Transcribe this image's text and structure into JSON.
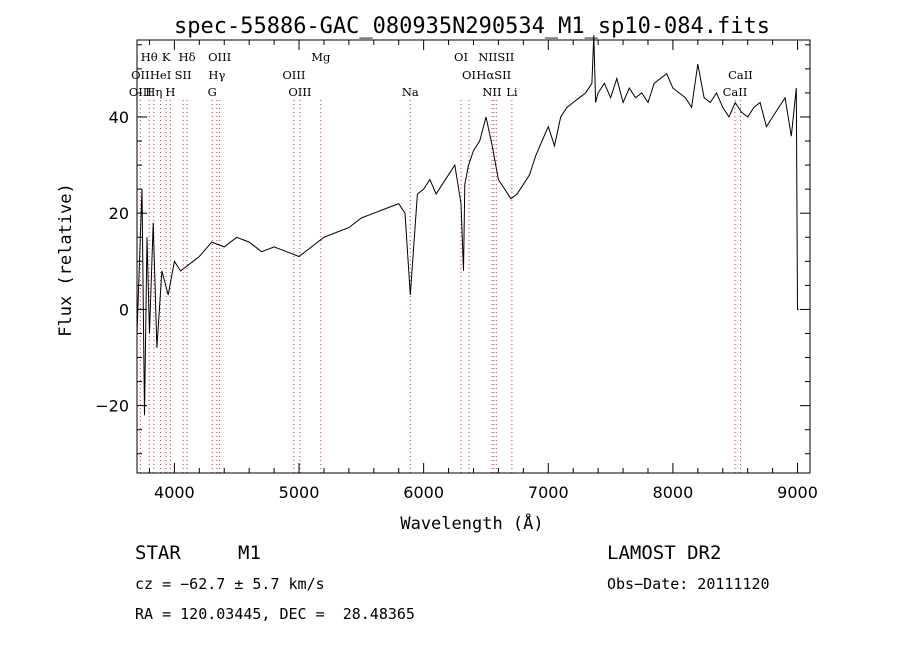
{
  "chart_data": {
    "type": "line",
    "title": "spec-55886-GAC_080935N290534_M1_sp10-084.fits",
    "xlabel": "Wavelength (Å)",
    "ylabel": "Flux (relative)",
    "xlim": [
      3700,
      9100
    ],
    "ylim": [
      -34,
      56
    ],
    "x_ticks": [
      4000,
      5000,
      6000,
      7000,
      8000,
      9000
    ],
    "x_tick_labels": [
      "4000",
      "5000",
      "6000",
      "7000",
      "8000",
      "9000"
    ],
    "y_ticks": [
      -20,
      0,
      20,
      40
    ],
    "y_tick_labels": [
      "−20",
      "0",
      "20",
      "40"
    ],
    "grid": false,
    "series": [
      {
        "x": [
          3700,
          3740,
          3760,
          3780,
          3800,
          3830,
          3860,
          3900,
          3950,
          4000,
          4050,
          4100,
          4150,
          4200,
          4300,
          4400,
          4500,
          4600,
          4700,
          4800,
          4900,
          5000,
          5100,
          5200,
          5300,
          5400,
          5500,
          5600,
          5700,
          5800,
          5850,
          5893,
          5950,
          6000,
          6050,
          6100,
          6150,
          6200,
          6250,
          6300,
          6320,
          6330,
          6360,
          6400,
          6450,
          6500,
          6550,
          6600,
          6650,
          6700,
          6750,
          6800,
          6850,
          6900,
          6950,
          7000,
          7050,
          7100,
          7150,
          7200,
          7250,
          7300,
          7350,
          7365,
          7380,
          7400,
          7450,
          7500,
          7550,
          7600,
          7650,
          7700,
          7750,
          7800,
          7850,
          7900,
          7950,
          8000,
          8050,
          8100,
          8150,
          8200,
          8250,
          8300,
          8350,
          8400,
          8450,
          8500,
          8550,
          8600,
          8650,
          8700,
          8750,
          8800,
          8850,
          8900,
          8950,
          8990,
          9000,
          9010
        ],
        "y": [
          -5,
          25,
          -22,
          15,
          -5,
          18,
          -8,
          8,
          3,
          10,
          8,
          9,
          10,
          11,
          14,
          13,
          15,
          14,
          12,
          13,
          12,
          11,
          13,
          15,
          16,
          17,
          19,
          20,
          21,
          22,
          20,
          3,
          24,
          25,
          27,
          24,
          26,
          28,
          30,
          22,
          8,
          26,
          30,
          33,
          35,
          40,
          34,
          27,
          25,
          23,
          24,
          26,
          28,
          32,
          35,
          38,
          34,
          40,
          42,
          43,
          44,
          45,
          47,
          57,
          43,
          45,
          47,
          44,
          48,
          43,
          46,
          44,
          45,
          43,
          47,
          48,
          49,
          46,
          45,
          44,
          42,
          51,
          44,
          43,
          45,
          42,
          40,
          43,
          41,
          40,
          42,
          43,
          38,
          40,
          42,
          44,
          36,
          46,
          0,
          0
        ]
      }
    ],
    "spectral_lines": [
      {
        "label": "Hθ",
        "wave": 3798,
        "row": 0,
        "color": "#000000"
      },
      {
        "label": "K",
        "wave": 3934,
        "row": 0,
        "color": "#000000"
      },
      {
        "label": "Hδ",
        "wave": 4102,
        "row": 0,
        "color": "#000000"
      },
      {
        "label": "OIII",
        "wave": 4363,
        "row": 0,
        "color": "#000000"
      },
      {
        "label": "Mg",
        "wave": 5175,
        "row": 0,
        "color": "#000000"
      },
      {
        "label": "OI",
        "wave": 6300,
        "row": 0,
        "color": "#000000"
      },
      {
        "label": "NIISII",
        "wave": 6583,
        "row": 0,
        "color": "#000000"
      },
      {
        "label": "OII",
        "wave": 3727,
        "row": 1,
        "color": "#000000"
      },
      {
        "label": "HeI",
        "wave": 3889,
        "row": 1,
        "color": "#000000"
      },
      {
        "label": "SII",
        "wave": 4070,
        "row": 1,
        "color": "#000000"
      },
      {
        "label": "Hγ",
        "wave": 4341,
        "row": 1,
        "color": "#000000"
      },
      {
        "label": "OIII",
        "wave": 4959,
        "row": 1,
        "color": "#000000"
      },
      {
        "label": "OI",
        "wave": 6364,
        "row": 1,
        "color": "#000000"
      },
      {
        "label": "HαSII",
        "wave": 6563,
        "row": 1,
        "color": "#000000"
      },
      {
        "label": "CaII",
        "wave": 8542,
        "row": 1,
        "color": "#000000"
      },
      {
        "label": "OIII",
        "wave": 3727,
        "row": 2,
        "color": "#000000"
      },
      {
        "label": "Hη",
        "wave": 3835,
        "row": 2,
        "color": "#000000"
      },
      {
        "label": "H",
        "wave": 3968,
        "row": 2,
        "color": "#000000"
      },
      {
        "label": "G",
        "wave": 4304,
        "row": 2,
        "color": "#000000"
      },
      {
        "label": "OIII",
        "wave": 5007,
        "row": 2,
        "color": "#000000"
      },
      {
        "label": "Na",
        "wave": 5893,
        "row": 2,
        "color": "#000000"
      },
      {
        "label": "NII",
        "wave": 6548,
        "row": 2,
        "color": "#000000"
      },
      {
        "label": "Li",
        "wave": 6708,
        "row": 2,
        "color": "#000000"
      },
      {
        "label": "CaII",
        "wave": 8498,
        "row": 2,
        "color": "#000000"
      }
    ],
    "line_marker_color": "#cc3333"
  },
  "info": {
    "object_class": "STAR",
    "subclass": "M1",
    "survey": "LAMOST DR2",
    "cz": "cz = −62.7 ± 5.7 km/s",
    "obs_date": "Obs−Date: 20111120",
    "coords": "RA = 120.03445, DEC =  28.48365"
  }
}
